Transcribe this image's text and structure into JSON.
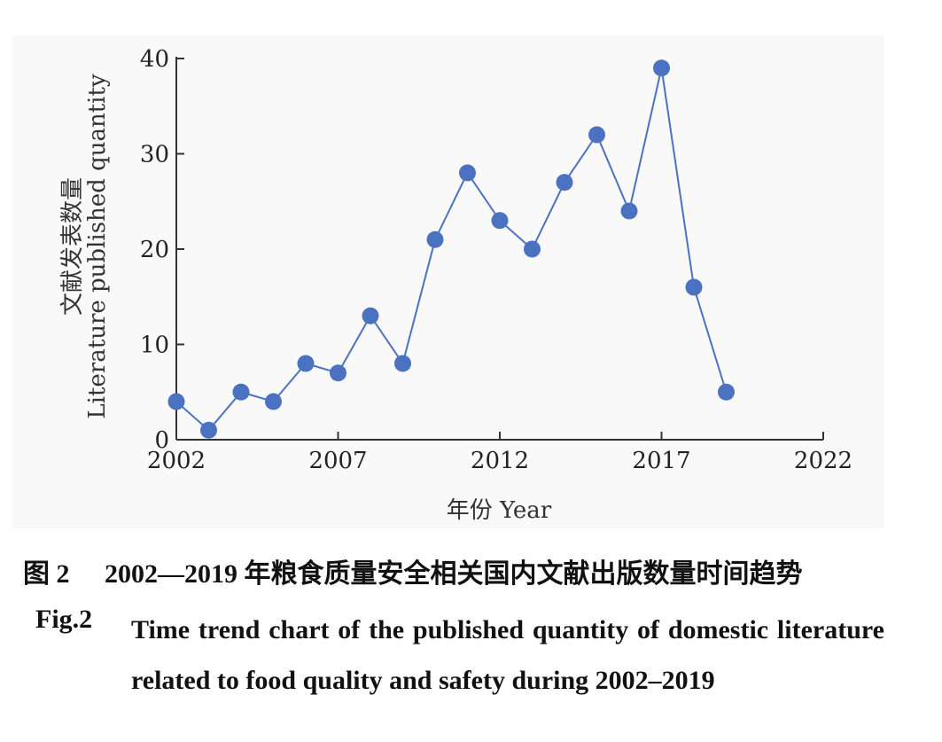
{
  "chart_data": {
    "type": "line",
    "x": [
      2002,
      2003,
      2004,
      2005,
      2006,
      2007,
      2008,
      2009,
      2010,
      2011,
      2012,
      2013,
      2014,
      2015,
      2016,
      2017,
      2018,
      2019
    ],
    "series": [
      {
        "values": [
          4,
          1,
          5,
          4,
          8,
          7,
          13,
          8,
          21,
          28,
          23,
          20,
          27,
          32,
          24,
          39,
          16,
          5
        ]
      }
    ],
    "xlabel": "年份 Year",
    "ylabel_cn": "文献发表数量",
    "ylabel_en": "Literature published quantity",
    "xlim": [
      2002,
      2022
    ],
    "ylim": [
      0,
      40
    ],
    "xticks": [
      "2002",
      "2007",
      "2012",
      "2017",
      "2022"
    ],
    "yticks": [
      "0",
      "10",
      "20",
      "30",
      "40"
    ],
    "grid": false,
    "color": "#4a72c0"
  },
  "caption": {
    "cn_label": "图 2",
    "cn_text": "2002—2019 年粮食质量安全相关国内文献出版数量时间趋势",
    "en_label": "Fig.2",
    "en_text": "Time trend chart of the published quantity of domestic literature related to food quality and safety during 2002–2019"
  }
}
